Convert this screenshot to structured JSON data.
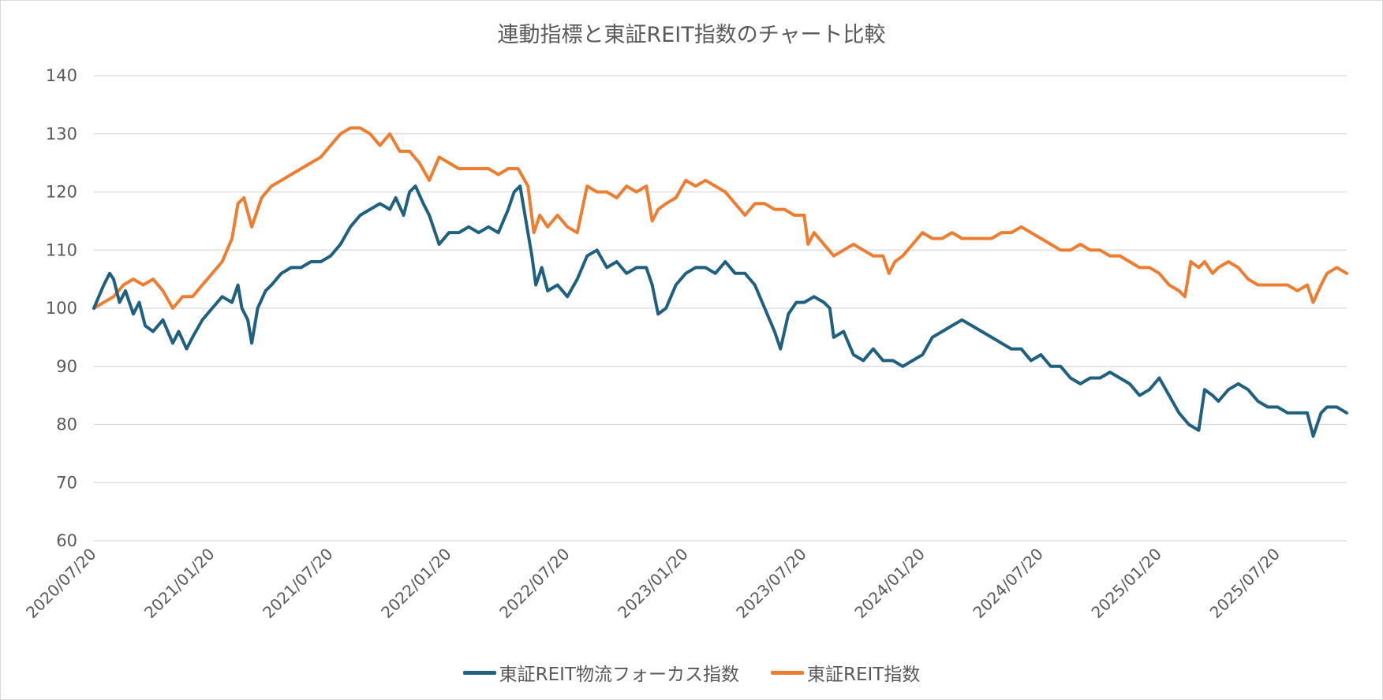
{
  "chart_data": {
    "type": "line",
    "title": "連動指標と東証REIT指数のチャート比較",
    "xlabel": "",
    "ylabel": "",
    "ylim": [
      60,
      140
    ],
    "yticks": [
      60,
      70,
      80,
      90,
      100,
      110,
      120,
      130,
      140
    ],
    "x_tick_labels": [
      "2020/07/20",
      "2021/01/20",
      "2021/07/20",
      "2022/01/20",
      "2022/07/20",
      "2023/01/20",
      "2023/07/20",
      "2024/01/20",
      "2024/07/20",
      "2025/01/20",
      "2025/07/20"
    ],
    "x_range_months": [
      0,
      63.5
    ],
    "grid": "horizontal",
    "legend_position": "bottom",
    "series": [
      {
        "name": "東証REIT物流フォーカス指数",
        "color": "#1f5f80",
        "points": [
          [
            0,
            100
          ],
          [
            0.5,
            104
          ],
          [
            0.8,
            106
          ],
          [
            1.0,
            105
          ],
          [
            1.3,
            101
          ],
          [
            1.6,
            103
          ],
          [
            2.0,
            99
          ],
          [
            2.3,
            101
          ],
          [
            2.6,
            97
          ],
          [
            3.0,
            96
          ],
          [
            3.5,
            98
          ],
          [
            4.0,
            94
          ],
          [
            4.3,
            96
          ],
          [
            4.7,
            93
          ],
          [
            5.0,
            95
          ],
          [
            5.5,
            98
          ],
          [
            6.0,
            100
          ],
          [
            6.5,
            102
          ],
          [
            7.0,
            101
          ],
          [
            7.3,
            104
          ],
          [
            7.5,
            100
          ],
          [
            7.8,
            98
          ],
          [
            8.0,
            94
          ],
          [
            8.3,
            100
          ],
          [
            8.7,
            103
          ],
          [
            9.0,
            104
          ],
          [
            9.5,
            106
          ],
          [
            10.0,
            107
          ],
          [
            10.5,
            107
          ],
          [
            11.0,
            108
          ],
          [
            11.5,
            108
          ],
          [
            12.0,
            109
          ],
          [
            12.5,
            111
          ],
          [
            13.0,
            114
          ],
          [
            13.5,
            116
          ],
          [
            14.0,
            117
          ],
          [
            14.5,
            118
          ],
          [
            15.0,
            117
          ],
          [
            15.3,
            119
          ],
          [
            15.7,
            116
          ],
          [
            16.0,
            120
          ],
          [
            16.3,
            121
          ],
          [
            16.7,
            118
          ],
          [
            17.0,
            116
          ],
          [
            17.5,
            111
          ],
          [
            18.0,
            113
          ],
          [
            18.5,
            113
          ],
          [
            19.0,
            114
          ],
          [
            19.5,
            113
          ],
          [
            20.0,
            114
          ],
          [
            20.5,
            113
          ],
          [
            21.0,
            117
          ],
          [
            21.3,
            120
          ],
          [
            21.6,
            121
          ],
          [
            21.9,
            115
          ],
          [
            22.2,
            109
          ],
          [
            22.4,
            104
          ],
          [
            22.7,
            107
          ],
          [
            23.0,
            103
          ],
          [
            23.5,
            104
          ],
          [
            24.0,
            102
          ],
          [
            24.5,
            105
          ],
          [
            25.0,
            109
          ],
          [
            25.5,
            110
          ],
          [
            26.0,
            107
          ],
          [
            26.5,
            108
          ],
          [
            27.0,
            106
          ],
          [
            27.5,
            107
          ],
          [
            28.0,
            107
          ],
          [
            28.3,
            104
          ],
          [
            28.6,
            99
          ],
          [
            29.0,
            100
          ],
          [
            29.5,
            104
          ],
          [
            30.0,
            106
          ],
          [
            30.5,
            107
          ],
          [
            31.0,
            107
          ],
          [
            31.5,
            106
          ],
          [
            32.0,
            108
          ],
          [
            32.5,
            106
          ],
          [
            33.0,
            106
          ],
          [
            33.5,
            104
          ],
          [
            34.0,
            100
          ],
          [
            34.5,
            96
          ],
          [
            34.8,
            93
          ],
          [
            35.2,
            99
          ],
          [
            35.6,
            101
          ],
          [
            36.0,
            101
          ],
          [
            36.5,
            102
          ],
          [
            37.0,
            101
          ],
          [
            37.3,
            100
          ],
          [
            37.5,
            95
          ],
          [
            38.0,
            96
          ],
          [
            38.5,
            92
          ],
          [
            39.0,
            91
          ],
          [
            39.5,
            93
          ],
          [
            40.0,
            91
          ],
          [
            40.5,
            91
          ],
          [
            41.0,
            90
          ],
          [
            41.5,
            91
          ],
          [
            42.0,
            92
          ],
          [
            42.5,
            95
          ],
          [
            43.0,
            96
          ],
          [
            43.5,
            97
          ],
          [
            44.0,
            98
          ],
          [
            44.5,
            97
          ],
          [
            45.0,
            96
          ],
          [
            45.5,
            95
          ],
          [
            46.0,
            94
          ],
          [
            46.5,
            93
          ],
          [
            47.0,
            93
          ],
          [
            47.5,
            91
          ],
          [
            48.0,
            92
          ],
          [
            48.5,
            90
          ],
          [
            49.0,
            90
          ],
          [
            49.5,
            88
          ],
          [
            50.0,
            87
          ],
          [
            50.5,
            88
          ],
          [
            51.0,
            88
          ],
          [
            51.5,
            89
          ],
          [
            52.0,
            88
          ],
          [
            52.5,
            87
          ],
          [
            53.0,
            85
          ],
          [
            53.5,
            86
          ],
          [
            54.0,
            88
          ],
          [
            54.5,
            85
          ],
          [
            55.0,
            82
          ],
          [
            55.5,
            80
          ],
          [
            56.0,
            79
          ],
          [
            56.3,
            86
          ],
          [
            56.7,
            85
          ],
          [
            57.0,
            84
          ],
          [
            57.5,
            86
          ],
          [
            58.0,
            87
          ],
          [
            58.5,
            86
          ],
          [
            59.0,
            84
          ],
          [
            59.5,
            83
          ],
          [
            60.0,
            83
          ],
          [
            60.5,
            82
          ],
          [
            61.0,
            82
          ],
          [
            61.5,
            82
          ],
          [
            61.8,
            78
          ],
          [
            62.2,
            82
          ],
          [
            62.5,
            83
          ],
          [
            63.0,
            83
          ],
          [
            63.5,
            82
          ]
        ]
      },
      {
        "name": "東証REIT指数",
        "color": "#ed7d31",
        "points": [
          [
            0,
            100
          ],
          [
            0.5,
            101
          ],
          [
            1.0,
            102
          ],
          [
            1.5,
            104
          ],
          [
            2.0,
            105
          ],
          [
            2.5,
            104
          ],
          [
            3.0,
            105
          ],
          [
            3.5,
            103
          ],
          [
            4.0,
            100
          ],
          [
            4.5,
            102
          ],
          [
            5.0,
            102
          ],
          [
            5.5,
            104
          ],
          [
            6.0,
            106
          ],
          [
            6.5,
            108
          ],
          [
            7.0,
            112
          ],
          [
            7.3,
            118
          ],
          [
            7.6,
            119
          ],
          [
            8.0,
            114
          ],
          [
            8.5,
            119
          ],
          [
            9.0,
            121
          ],
          [
            9.5,
            122
          ],
          [
            10.0,
            123
          ],
          [
            10.5,
            124
          ],
          [
            11.0,
            125
          ],
          [
            11.5,
            126
          ],
          [
            12.0,
            128
          ],
          [
            12.5,
            130
          ],
          [
            13.0,
            131
          ],
          [
            13.5,
            131
          ],
          [
            14.0,
            130
          ],
          [
            14.5,
            128
          ],
          [
            15.0,
            130
          ],
          [
            15.5,
            127
          ],
          [
            16.0,
            127
          ],
          [
            16.5,
            125
          ],
          [
            17.0,
            122
          ],
          [
            17.5,
            126
          ],
          [
            18.0,
            125
          ],
          [
            18.5,
            124
          ],
          [
            19.0,
            124
          ],
          [
            19.5,
            124
          ],
          [
            20.0,
            124
          ],
          [
            20.5,
            123
          ],
          [
            21.0,
            124
          ],
          [
            21.5,
            124
          ],
          [
            22.0,
            121
          ],
          [
            22.3,
            113
          ],
          [
            22.6,
            116
          ],
          [
            23.0,
            114
          ],
          [
            23.5,
            116
          ],
          [
            24.0,
            114
          ],
          [
            24.5,
            113
          ],
          [
            25.0,
            121
          ],
          [
            25.5,
            120
          ],
          [
            26.0,
            120
          ],
          [
            26.5,
            119
          ],
          [
            27.0,
            121
          ],
          [
            27.5,
            120
          ],
          [
            28.0,
            121
          ],
          [
            28.3,
            115
          ],
          [
            28.6,
            117
          ],
          [
            29.0,
            118
          ],
          [
            29.5,
            119
          ],
          [
            30.0,
            122
          ],
          [
            30.5,
            121
          ],
          [
            31.0,
            122
          ],
          [
            31.5,
            121
          ],
          [
            32.0,
            120
          ],
          [
            32.5,
            118
          ],
          [
            33.0,
            116
          ],
          [
            33.5,
            118
          ],
          [
            34.0,
            118
          ],
          [
            34.5,
            117
          ],
          [
            35.0,
            117
          ],
          [
            35.5,
            116
          ],
          [
            36.0,
            116
          ],
          [
            36.2,
            111
          ],
          [
            36.5,
            113
          ],
          [
            37.0,
            111
          ],
          [
            37.5,
            109
          ],
          [
            38.0,
            110
          ],
          [
            38.5,
            111
          ],
          [
            39.0,
            110
          ],
          [
            39.5,
            109
          ],
          [
            40.0,
            109
          ],
          [
            40.3,
            106
          ],
          [
            40.6,
            108
          ],
          [
            41.0,
            109
          ],
          [
            41.5,
            111
          ],
          [
            42.0,
            113
          ],
          [
            42.5,
            112
          ],
          [
            43.0,
            112
          ],
          [
            43.5,
            113
          ],
          [
            44.0,
            112
          ],
          [
            44.5,
            112
          ],
          [
            45.0,
            112
          ],
          [
            45.5,
            112
          ],
          [
            46.0,
            113
          ],
          [
            46.5,
            113
          ],
          [
            47.0,
            114
          ],
          [
            47.5,
            113
          ],
          [
            48.0,
            112
          ],
          [
            48.5,
            111
          ],
          [
            49.0,
            110
          ],
          [
            49.5,
            110
          ],
          [
            50.0,
            111
          ],
          [
            50.5,
            110
          ],
          [
            51.0,
            110
          ],
          [
            51.5,
            109
          ],
          [
            52.0,
            109
          ],
          [
            52.5,
            108
          ],
          [
            53.0,
            107
          ],
          [
            53.5,
            107
          ],
          [
            54.0,
            106
          ],
          [
            54.5,
            104
          ],
          [
            55.0,
            103
          ],
          [
            55.3,
            102
          ],
          [
            55.6,
            108
          ],
          [
            56.0,
            107
          ],
          [
            56.3,
            108
          ],
          [
            56.7,
            106
          ],
          [
            57.0,
            107
          ],
          [
            57.5,
            108
          ],
          [
            58.0,
            107
          ],
          [
            58.5,
            105
          ],
          [
            59.0,
            104
          ],
          [
            59.5,
            104
          ],
          [
            60.0,
            104
          ],
          [
            60.5,
            104
          ],
          [
            61.0,
            103
          ],
          [
            61.5,
            104
          ],
          [
            61.8,
            101
          ],
          [
            62.2,
            104
          ],
          [
            62.5,
            106
          ],
          [
            63.0,
            107
          ],
          [
            63.5,
            106
          ]
        ]
      }
    ]
  }
}
